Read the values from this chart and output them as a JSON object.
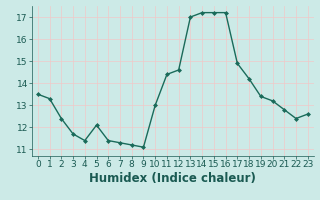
{
  "x": [
    0,
    1,
    2,
    3,
    4,
    5,
    6,
    7,
    8,
    9,
    10,
    11,
    12,
    13,
    14,
    15,
    16,
    17,
    18,
    19,
    20,
    21,
    22,
    23
  ],
  "y": [
    13.5,
    13.3,
    12.4,
    11.7,
    11.4,
    12.1,
    11.4,
    11.3,
    11.2,
    11.1,
    13.0,
    14.4,
    14.6,
    17.0,
    17.2,
    17.2,
    17.2,
    14.9,
    14.2,
    13.4,
    13.2,
    12.8,
    12.4,
    12.6
  ],
  "line_color": "#1a6b5a",
  "marker": "D",
  "marker_size": 2.0,
  "bg_color": "#cceae7",
  "grid_color_major": "#f0c8c8",
  "grid_color_minor": "#ffffff",
  "xlabel": "Humidex (Indice chaleur)",
  "xlim": [
    -0.5,
    23.5
  ],
  "ylim": [
    10.7,
    17.5
  ],
  "yticks": [
    11,
    12,
    13,
    14,
    15,
    16,
    17
  ],
  "xticks": [
    0,
    1,
    2,
    3,
    4,
    5,
    6,
    7,
    8,
    9,
    10,
    11,
    12,
    13,
    14,
    15,
    16,
    17,
    18,
    19,
    20,
    21,
    22,
    23
  ],
  "xtick_labels": [
    "0",
    "1",
    "2",
    "3",
    "4",
    "5",
    "6",
    "7",
    "8",
    "9",
    "10",
    "11",
    "12",
    "13",
    "14",
    "15",
    "16",
    "17",
    "18",
    "19",
    "20",
    "21",
    "22",
    "23"
  ],
  "tick_fontsize": 6.5,
  "xlabel_fontsize": 8.5,
  "line_width": 1.0
}
